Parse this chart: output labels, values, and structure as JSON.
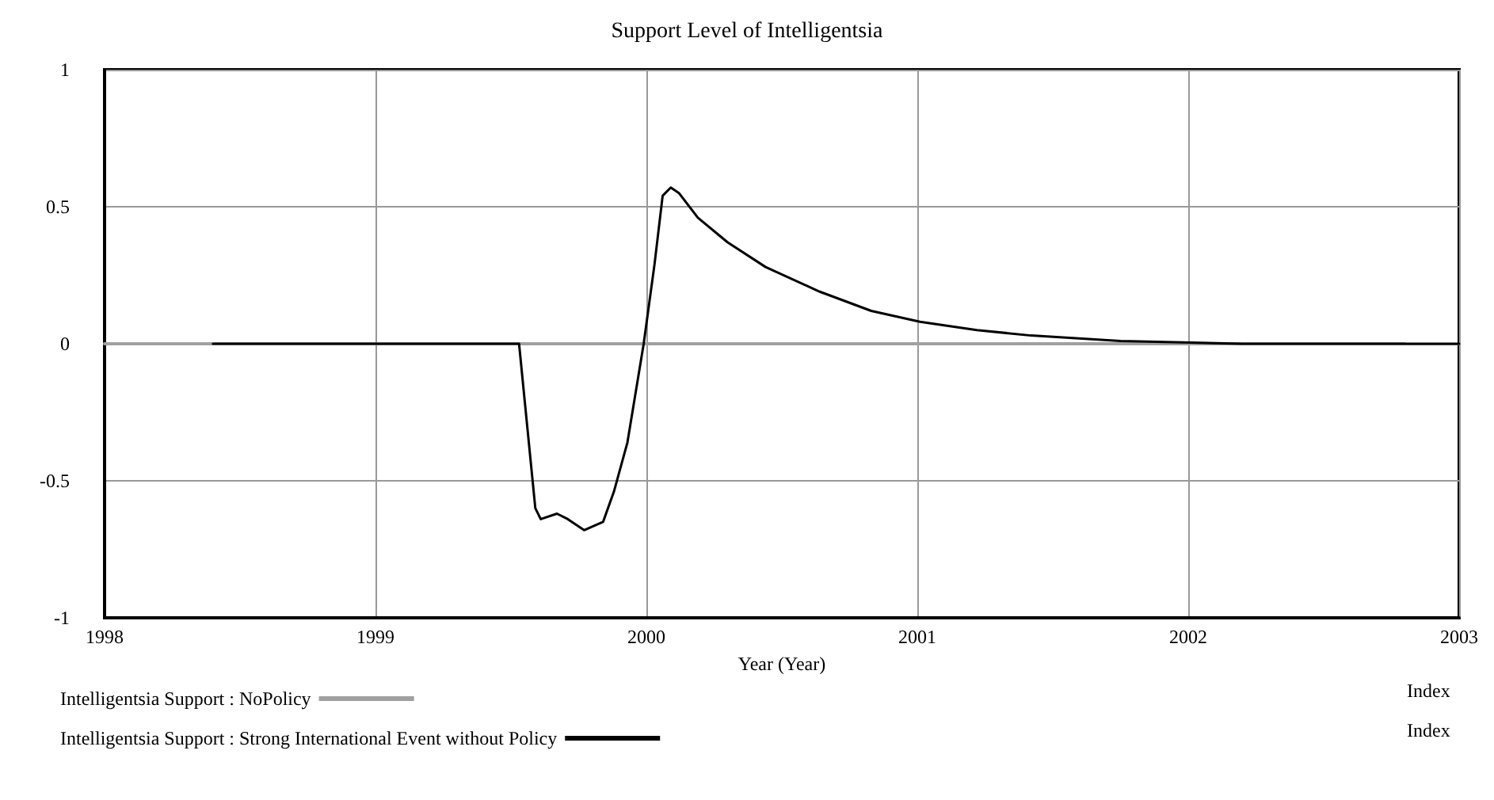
{
  "chart_data": {
    "type": "line",
    "title": "Support Level of Intelligentsia",
    "xlabel": "Year (Year)",
    "xlim": [
      1998,
      2003
    ],
    "xticks": [
      1998,
      1999,
      2000,
      2001,
      2002,
      2003
    ],
    "ylim": [
      -1,
      1
    ],
    "yticks": [
      -1,
      -0.5,
      0,
      0.5,
      1
    ],
    "grid": true,
    "legend": "bottom",
    "marker": "none",
    "line_style": "solid",
    "series": [
      {
        "name": "Intelligentsia Support : NoPolicy",
        "color": "#a0a0a0",
        "x": [
          1998,
          2002.8
        ],
        "values": [
          0,
          0
        ]
      },
      {
        "name": "Intelligentsia Support : Strong International Event without Policy",
        "color": "#000000",
        "x": [
          1998.4,
          1999.53,
          1999.59,
          1999.61,
          1999.67,
          1999.71,
          1999.77,
          1999.84,
          1999.88,
          1999.93,
          1999.99,
          2000.03,
          2000.06,
          2000.09,
          2000.12,
          2000.19,
          2000.3,
          2000.44,
          2000.64,
          2000.83,
          2001.01,
          2001.22,
          2001.42,
          2001.75,
          2002.2,
          2003
        ],
        "values": [
          0,
          0,
          -0.6,
          -0.64,
          -0.62,
          -0.64,
          -0.68,
          -0.65,
          -0.54,
          -0.36,
          0,
          0.29,
          0.54,
          0.57,
          0.55,
          0.46,
          0.37,
          0.28,
          0.19,
          0.12,
          0.08,
          0.05,
          0.03,
          0.01,
          0,
          0
        ]
      }
    ],
    "annotations": [
      "Index",
      "Index"
    ]
  }
}
